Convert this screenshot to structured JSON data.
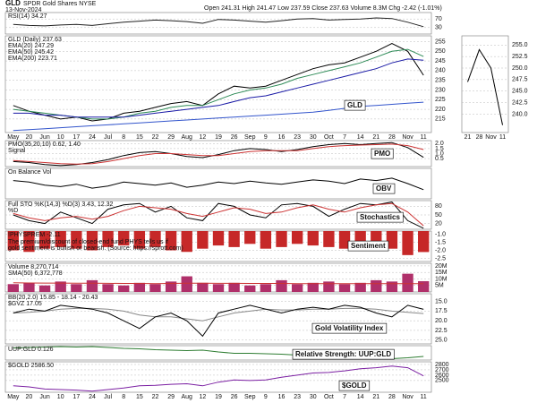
{
  "header": {
    "symbol": "GLD",
    "name": "SPDR Gold Shares NYSE",
    "date": "13-Nov-2024",
    "quote": "Open 241.31  High 241.47  Low 237.59  Close 237.63  Volume 8.3M  Chg -2.42 (-1.01%)"
  },
  "chart_data": [
    {
      "type": "line",
      "ylim": [
        0,
        100
      ],
      "yticks": [
        70,
        30
      ],
      "series": [
        {
          "name": "RSI(14) 34.27",
          "color": "#222222",
          "values": [
            45,
            40,
            38,
            42,
            45,
            40,
            48,
            55,
            60,
            65,
            62,
            58,
            50,
            68,
            65,
            60,
            55,
            62,
            70,
            72,
            65,
            68,
            70,
            75,
            72,
            55,
            34.27
          ]
        }
      ]
    },
    {
      "type": "line",
      "annotation": "GLD",
      "ylim": [
        208,
        258
      ],
      "yticks": [
        255,
        250,
        245,
        240,
        235,
        230,
        225,
        220,
        215
      ],
      "categories": [
        "May",
        "20",
        "Jun",
        "10",
        "17",
        "24",
        "Jul",
        "8",
        "15",
        "22",
        "29",
        "Aug",
        "12",
        "19",
        "26",
        "Sep",
        "9",
        "16",
        "23",
        "30",
        "Oct",
        "7",
        "14",
        "21",
        "28",
        "Nov",
        "11"
      ],
      "series": [
        {
          "name": "GLD (Daily) 237.63",
          "color": "#000000",
          "values": [
            222,
            219,
            217,
            215,
            216,
            214,
            215,
            218,
            219,
            221,
            223,
            224,
            222,
            228,
            232,
            231,
            232,
            235,
            238,
            241,
            243,
            244,
            247,
            250,
            254,
            250,
            237.63
          ]
        },
        {
          "name": "EMA(20) 247.29",
          "color": "#2e8b57",
          "values": [
            220,
            219,
            218,
            217,
            216,
            215,
            215,
            216,
            218,
            219,
            221,
            222,
            222,
            225,
            228,
            230,
            231,
            233,
            236,
            238,
            240,
            242,
            244,
            247,
            250,
            251,
            247.29
          ]
        },
        {
          "name": "EMA(50) 245.42",
          "color": "#1a1aa6",
          "values": [
            218,
            218,
            217,
            217,
            216,
            216,
            216,
            216,
            217,
            218,
            219,
            220,
            221,
            222,
            224,
            226,
            227,
            229,
            231,
            233,
            235,
            237,
            239,
            241,
            244,
            246,
            245.42
          ]
        },
        {
          "name": "EMA(200) 223.71",
          "color": "#3355cc",
          "values": [
            209,
            209.5,
            210,
            210.5,
            211,
            211.5,
            212,
            212.5,
            213,
            213.5,
            214,
            214.5,
            215,
            215.5,
            216,
            216.5,
            217,
            217.5,
            218,
            218.5,
            219.5,
            220.5,
            221.5,
            222,
            222.6,
            223.2,
            223.71
          ]
        }
      ]
    },
    {
      "type": "line",
      "annotation": "PMO",
      "ylim": [
        -0.3,
        2.3
      ],
      "yticks": [
        {
          "value": 2,
          "label": "2.0"
        },
        {
          "value": 1.5,
          "label": "1.5"
        },
        {
          "value": 1,
          "label": "1.0"
        },
        {
          "value": 0.5,
          "label": "0.5"
        }
      ],
      "series": [
        {
          "name": "PMO(35,20,10) 0.62, 1.40",
          "color": "#000000",
          "values": [
            0.2,
            0.1,
            -0.1,
            -0.2,
            -0.1,
            0.1,
            0.4,
            0.8,
            1.1,
            1.2,
            1.0,
            0.7,
            0.6,
            0.9,
            1.3,
            1.5,
            1.4,
            1.2,
            1.4,
            1.7,
            1.9,
            2.0,
            1.9,
            2.0,
            2.1,
            1.6,
            0.62
          ]
        },
        {
          "name": "Signal",
          "color": "#cc3333",
          "values": [
            0.3,
            0.2,
            0.1,
            0.0,
            -0.05,
            0.0,
            0.2,
            0.5,
            0.8,
            1.0,
            1.0,
            0.9,
            0.8,
            0.8,
            1.0,
            1.2,
            1.3,
            1.3,
            1.3,
            1.5,
            1.7,
            1.8,
            1.85,
            1.9,
            1.95,
            1.8,
            1.4
          ]
        }
      ]
    },
    {
      "type": "line",
      "annotation": "OBV",
      "ylim": [
        0,
        100
      ],
      "series": [
        {
          "name": "On Balance Vol",
          "color": "#000000",
          "values": [
            60,
            55,
            45,
            40,
            48,
            35,
            42,
            55,
            50,
            45,
            52,
            38,
            45,
            55,
            50,
            58,
            52,
            48,
            55,
            62,
            58,
            50,
            65,
            60,
            68,
            50,
            30
          ]
        }
      ]
    },
    {
      "type": "line",
      "annotation": "Stochastics",
      "ylim": [
        0,
        100
      ],
      "yticks": [
        80,
        50,
        20
      ],
      "series": [
        {
          "name": "Full STO %K(14,3) %D(3) 3.43, 12.32",
          "color": "#000000",
          "values": [
            50,
            30,
            20,
            60,
            40,
            20,
            70,
            85,
            90,
            60,
            80,
            40,
            30,
            90,
            80,
            50,
            40,
            85,
            90,
            80,
            45,
            70,
            90,
            85,
            95,
            30,
            3.43
          ]
        },
        {
          "name": "%D",
          "color": "#cc3333",
          "values": [
            55,
            40,
            30,
            40,
            45,
            35,
            45,
            65,
            80,
            75,
            70,
            55,
            45,
            60,
            75,
            70,
            55,
            60,
            75,
            85,
            70,
            60,
            75,
            85,
            90,
            60,
            12.32
          ]
        }
      ]
    },
    {
      "type": "bar",
      "annotation": "Sentiment",
      "note": [
        "The premium/discount of closed-end fund PHYS tells us if",
        "gold sentiment is bullish or bearish. (Source: https://sprott.com)"
      ],
      "ylim": [
        -2.7,
        -0.8
      ],
      "yticks": [
        {
          "value": -1,
          "label": "-1.0"
        },
        {
          "value": -1.5,
          "label": "-1.5"
        },
        {
          "value": -2,
          "label": "-2.0"
        },
        {
          "value": -2.5,
          "label": "-2.5"
        }
      ],
      "series": [
        {
          "name": "!PHYSPREM -2.11",
          "color": "#c62828",
          "values": [
            -2.0,
            -2.1,
            -1.9,
            -1.8,
            -1.9,
            -2.0,
            -1.8,
            -1.7,
            -1.9,
            -1.8,
            -2.0,
            -2.1,
            -1.9,
            -1.7,
            -1.8,
            -1.6,
            -1.9,
            -1.8,
            -1.6,
            -1.7,
            -1.8,
            -1.9,
            -1.7,
            -1.6,
            -1.9,
            -2.3,
            -2.11
          ]
        }
      ]
    },
    {
      "type": "bar",
      "ylim": [
        0,
        22000000
      ],
      "yticks": [
        {
          "value": 20000000,
          "label": "20M"
        },
        {
          "value": 15000000,
          "label": "15M"
        },
        {
          "value": 10000000,
          "label": "10M"
        },
        {
          "value": 5000000,
          "label": "5M"
        }
      ],
      "series": [
        {
          "name": "Volume 8,270,714",
          "color": "#b0306a",
          "values": [
            6000000,
            7000000,
            5000000,
            8000000,
            6000000,
            9000000,
            6000000,
            5000000,
            7000000,
            6000000,
            8000000,
            12000000,
            7000000,
            6000000,
            7000000,
            5000000,
            6000000,
            9000000,
            6000000,
            7000000,
            8000000,
            6000000,
            7000000,
            9000000,
            8000000,
            14000000,
            8270714
          ]
        },
        {
          "name": "SMA(50) 6,372,778",
          "type": "line",
          "color": "#cc3333",
          "values": [
            7000000,
            6900000,
            6800000,
            6800000,
            6700000,
            6700000,
            6600000,
            6500000,
            6500000,
            6400000,
            6500000,
            6700000,
            6700000,
            6600000,
            6600000,
            6500000,
            6500000,
            6500000,
            6400000,
            6400000,
            6400000,
            6300000,
            6300000,
            6300000,
            6300000,
            6400000,
            6372778
          ]
        }
      ]
    },
    {
      "type": "line",
      "annotation": "Gold Volatility Index",
      "invert": true,
      "ylim": [
        13,
        26
      ],
      "yticks": [
        {
          "value": 15,
          "label": "15.0"
        },
        {
          "value": 17.5,
          "label": "17.5"
        },
        {
          "value": 20,
          "label": "20.0"
        },
        {
          "value": 22.5,
          "label": "22.5"
        },
        {
          "value": 25,
          "label": "25.0"
        }
      ],
      "series": [
        {
          "name": "BB(20,2.0) 15.85 - 18.14 - 20.43",
          "color": "#888888",
          "values": [
            18,
            17.8,
            17.5,
            17,
            16.8,
            16.8,
            17,
            17.5,
            18.5,
            19,
            19,
            19.5,
            20,
            19,
            18,
            17.5,
            17,
            17.2,
            17.2,
            17,
            17,
            16.8,
            16.8,
            17,
            17.5,
            17.8,
            18.14
          ]
        },
        {
          "name": "$GVZ 17.05",
          "color": "#000000",
          "values": [
            18,
            17,
            17.5,
            16,
            16.5,
            17,
            18,
            20,
            22,
            19,
            18,
            20,
            24,
            18,
            17,
            16,
            17,
            18,
            17,
            16.5,
            17,
            16,
            16.5,
            18,
            19,
            16,
            17.05
          ]
        }
      ]
    },
    {
      "type": "line",
      "annotation": "Relative Strength: UUP:GLD",
      "ylim": [
        0.118,
        0.15
      ],
      "series": [
        {
          "name": "UUP:GLD 0.126",
          "color": "#2e7d32",
          "values": [
            0.145,
            0.146,
            0.147,
            0.148,
            0.147,
            0.148,
            0.146,
            0.144,
            0.143,
            0.141,
            0.14,
            0.139,
            0.14,
            0.136,
            0.133,
            0.133,
            0.132,
            0.131,
            0.129,
            0.127,
            0.126,
            0.126,
            0.124,
            0.122,
            0.121,
            0.123,
            0.126
          ]
        }
      ]
    },
    {
      "type": "line",
      "annotation": "$GOLD",
      "ylim": [
        2280,
        2850
      ],
      "yticks": [
        2800,
        2700,
        2600,
        2500
      ],
      "categories": [
        "May",
        "20",
        "Jun",
        "10",
        "17",
        "24",
        "Jul",
        "8",
        "15",
        "22",
        "29",
        "Aug",
        "12",
        "19",
        "26",
        "Sep",
        "9",
        "16",
        "23",
        "30",
        "Oct",
        "7",
        "14",
        "21",
        "28",
        "Nov",
        "11"
      ],
      "series": [
        {
          "name": "$GOLD 2586.50",
          "color": "#7b1fa2",
          "values": [
            2400,
            2380,
            2340,
            2330,
            2320,
            2300,
            2330,
            2360,
            2400,
            2410,
            2430,
            2440,
            2400,
            2470,
            2510,
            2500,
            2510,
            2560,
            2600,
            2640,
            2650,
            2680,
            2720,
            2740,
            2770,
            2740,
            2586.5
          ]
        }
      ]
    },
    {
      "type": "line",
      "ylim": [
        236,
        257
      ],
      "categories": [
        "21",
        "28",
        "Nov",
        "11"
      ],
      "yticks": [
        {
          "value": 255,
          "label": "255.0"
        },
        {
          "value": 252.5,
          "label": "252.5"
        },
        {
          "value": 250,
          "label": "250.0"
        },
        {
          "value": 247.5,
          "label": "247.5"
        },
        {
          "value": 245,
          "label": "245.0"
        },
        {
          "value": 242.5,
          "label": "242.5"
        },
        {
          "value": 240,
          "label": "240.0"
        }
      ],
      "series": [
        {
          "name": "GLD",
          "color": "#000000",
          "values": [
            247,
            254,
            250,
            237.63
          ]
        }
      ]
    }
  ]
}
